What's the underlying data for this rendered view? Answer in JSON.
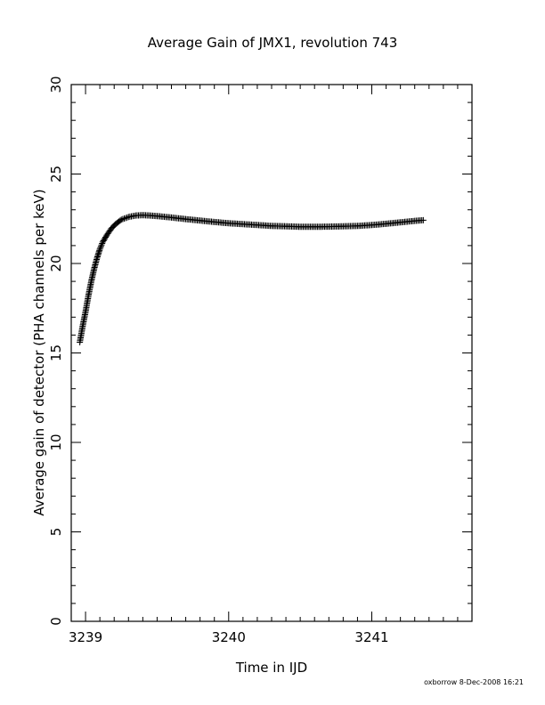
{
  "chart_data": {
    "type": "scatter",
    "title": "Average Gain of JMX1, revolution 743",
    "xlabel": "Time in IJD",
    "ylabel": "Average gain of detector (PHA channels per keV)",
    "xlim": [
      3238.9,
      3241.7
    ],
    "ylim": [
      0,
      30
    ],
    "x_ticks": [
      3239,
      3240,
      3241
    ],
    "x_tick_labels": [
      "3239",
      "3240",
      "3241"
    ],
    "y_ticks": [
      0,
      5,
      10,
      15,
      20,
      25,
      30
    ],
    "y_tick_labels": [
      "0",
      "5",
      "10",
      "15",
      "20",
      "25",
      "30"
    ],
    "grid": false,
    "legend": "none",
    "marker": "plus",
    "color": "#000000",
    "series": [
      {
        "x": [
          3238.96,
          3238.98,
          3239.0,
          3239.02,
          3239.04,
          3239.06,
          3239.08,
          3239.1,
          3239.12,
          3239.15,
          3239.18,
          3239.21,
          3239.25,
          3239.3,
          3239.35,
          3239.4,
          3239.45,
          3239.5,
          3239.6,
          3239.7,
          3239.8,
          3239.9,
          3240.0,
          3240.1,
          3240.2,
          3240.3,
          3240.4,
          3240.5,
          3240.6,
          3240.7,
          3240.8,
          3240.9,
          3241.0,
          3241.1,
          3241.2,
          3241.3,
          3241.36
        ],
        "y": [
          15.6,
          16.5,
          17.3,
          18.2,
          19.0,
          19.7,
          20.3,
          20.8,
          21.2,
          21.6,
          21.95,
          22.2,
          22.45,
          22.6,
          22.68,
          22.7,
          22.68,
          22.65,
          22.57,
          22.48,
          22.4,
          22.32,
          22.25,
          22.2,
          22.15,
          22.1,
          22.08,
          22.05,
          22.05,
          22.06,
          22.08,
          22.1,
          22.15,
          22.22,
          22.3,
          22.38,
          22.42
        ]
      }
    ]
  },
  "footer": {
    "credit": "oxborrow  8-Dec-2008 16:21"
  }
}
